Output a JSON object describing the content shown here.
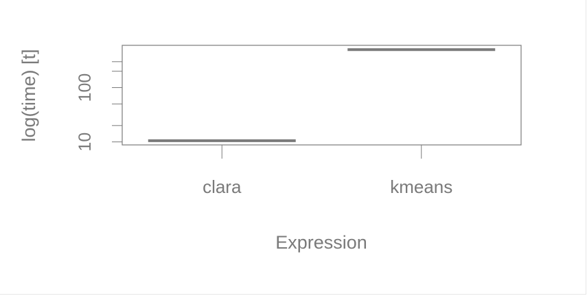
{
  "chart_data": {
    "type": "boxplot",
    "title": "",
    "xlabel": "Expression",
    "ylabel": "log(time) [t]",
    "y_scale": "log",
    "ylim": [
      8.8,
      600
    ],
    "categories": [
      "clara",
      "kmeans"
    ],
    "values": [
      10.5,
      500
    ],
    "y_ticks": [
      10,
      20,
      50,
      100,
      200,
      300
    ],
    "y_tick_labels": [
      {
        "value": 10,
        "label": "10"
      },
      {
        "value": 100,
        "label": "100"
      }
    ],
    "grid": false,
    "colors": {
      "axis": "#7a7a7a",
      "box": "#7a7a7a",
      "frame": "#7a7a7a"
    }
  }
}
